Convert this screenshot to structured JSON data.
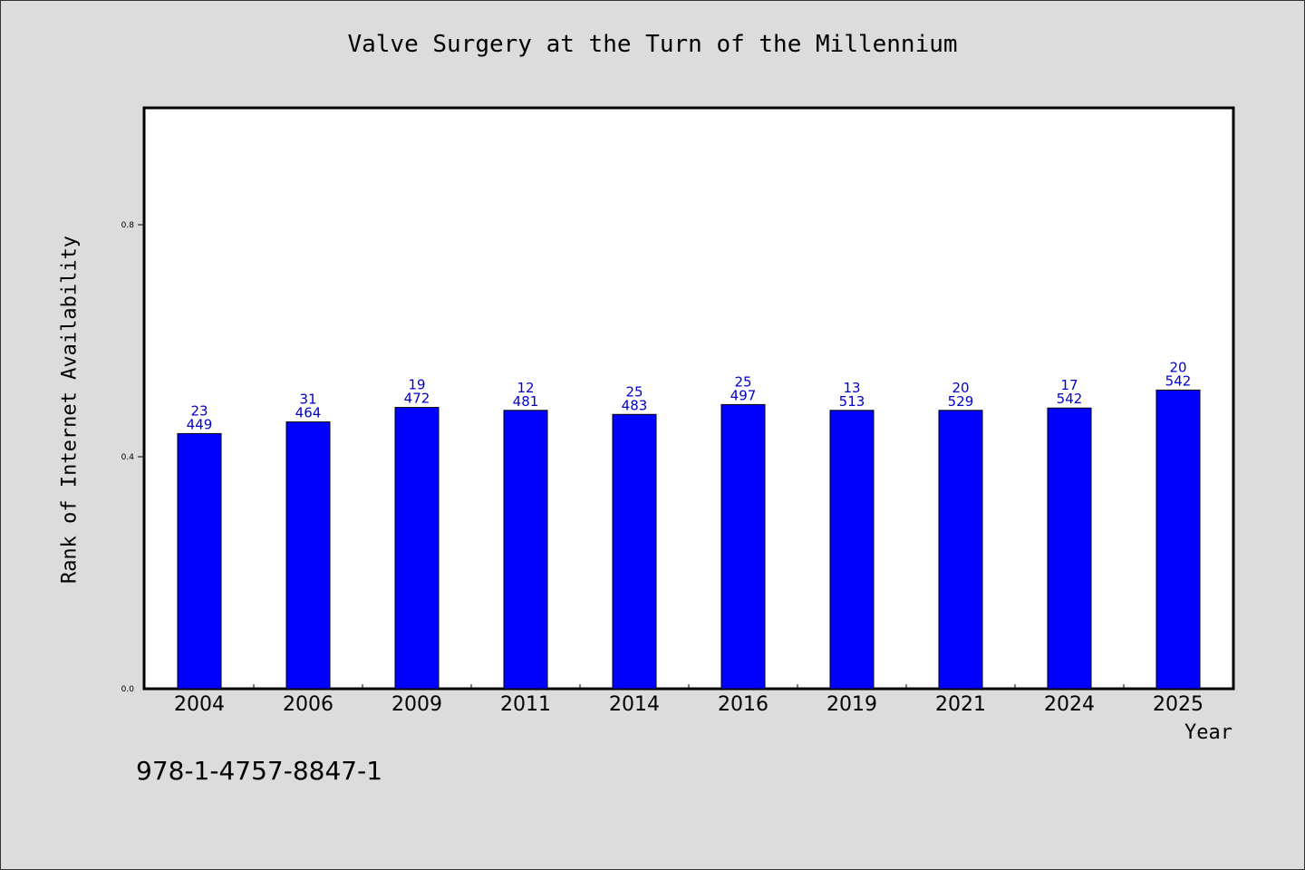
{
  "chart_data": {
    "type": "bar",
    "title": "Valve Surgery at the Turn of the Millennium",
    "xlabel": "Year",
    "ylabel": "Rank of Internet Availability",
    "categories": [
      "2004",
      "2006",
      "2009",
      "2011",
      "2014",
      "2016",
      "2019",
      "2021",
      "2024",
      "2025"
    ],
    "values": [
      0.44,
      0.46,
      0.485,
      0.48,
      0.473,
      0.49,
      0.48,
      0.48,
      0.484,
      0.515
    ],
    "data_labels_top": [
      "23",
      "31",
      "19",
      "12",
      "25",
      "25",
      "13",
      "20",
      "17",
      "20"
    ],
    "data_labels_bottom": [
      "449",
      "464",
      "472",
      "481",
      "483",
      "497",
      "513",
      "529",
      "542",
      "542"
    ],
    "ylim": [
      0,
      1.0
    ],
    "yticks": [
      0.0,
      0.4,
      0.8
    ],
    "ytick_labels": [
      "0.0",
      "0.4",
      "0.8"
    ],
    "grid": false,
    "bar_color": "#0000ff",
    "label_color": "#0000cc",
    "background_color": "#dcdcdc",
    "plot_background_color": "#ffffff"
  },
  "footer": {
    "isbn": "978-1-4757-8847-1"
  }
}
